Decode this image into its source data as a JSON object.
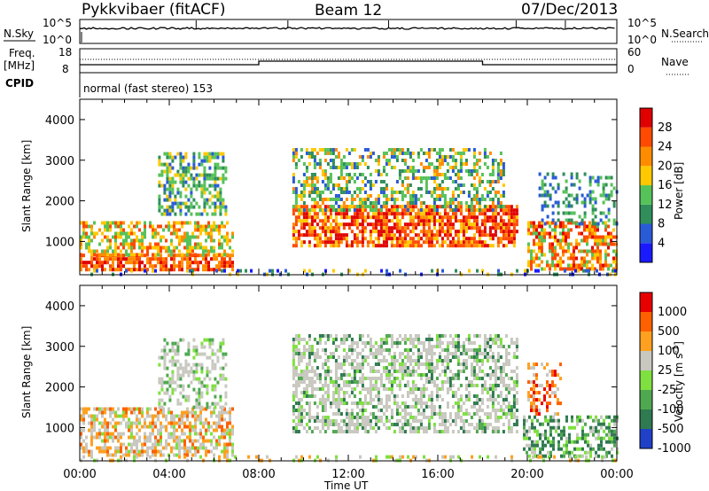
{
  "header": {
    "radar": "Pykkvibaer (fitACF)",
    "beam": "Beam 12",
    "date": "07/Dec/2013"
  },
  "strip": {
    "nsky_label": "N.Sky",
    "nsearch_label": "N.Search",
    "freq_label_1": "Freq.",
    "freq_label_2": "[MHz]",
    "nave_label": "Nave",
    "cpid_label": "CPID",
    "cpid_text": "normal (fast stereo) 153",
    "left_top_tick_1": "10^5",
    "left_bottom_tick_1": "10^0",
    "right_top_tick_1": "10^5",
    "right_bottom_tick_1": "10^0",
    "freq_ticks": [
      "18",
      "8"
    ],
    "nave_ticks": [
      "60",
      "0"
    ]
  },
  "chart_data": [
    {
      "type": "heatmap",
      "name": "power",
      "ylabel": "Slant Range [km]",
      "y_ticks": [
        "4000",
        "3000",
        "2000",
        "1000"
      ],
      "x_ticks": [
        "00:00",
        "04:00",
        "08:00",
        "12:00",
        "16:00",
        "20:00",
        "00:00"
      ],
      "colorbar_label": "Power [dB]",
      "colorbar_ticks": [
        "28",
        "24",
        "20",
        "16",
        "12",
        "8",
        "4"
      ],
      "colors": [
        "#1a1aff",
        "#2a5bd6",
        "#2f8e5a",
        "#56c25a",
        "#ffc800",
        "#ff8c00",
        "#ff4a00",
        "#e00000"
      ],
      "grid": false,
      "ylim": [
        180,
        4500
      ],
      "xlim_hours": [
        0,
        24
      ]
    },
    {
      "type": "heatmap",
      "name": "velocity",
      "ylabel": "Slant Range [km]",
      "y_ticks": [
        "4000",
        "3000",
        "2000",
        "1000"
      ],
      "x_ticks": [
        "00:00",
        "04:00",
        "08:00",
        "12:00",
        "16:00",
        "20:00",
        "00:00"
      ],
      "xlabel": "Time UT",
      "colorbar_label": "Velocity [m s",
      "colorbar_label_sup": "-1",
      "colorbar_label_close": "]",
      "colorbar_ticks": [
        "1000",
        "500",
        "100",
        "25",
        "-25",
        "-100",
        "-500",
        "-1000"
      ],
      "colors": [
        "#2040c8",
        "#2f7a50",
        "#4fa84f",
        "#7fe040",
        "#c8c8c0",
        "#ffa020",
        "#ff6000",
        "#e80000"
      ],
      "grid": false,
      "ylim": [
        180,
        4500
      ],
      "xlim_hours": [
        0,
        24
      ]
    }
  ]
}
